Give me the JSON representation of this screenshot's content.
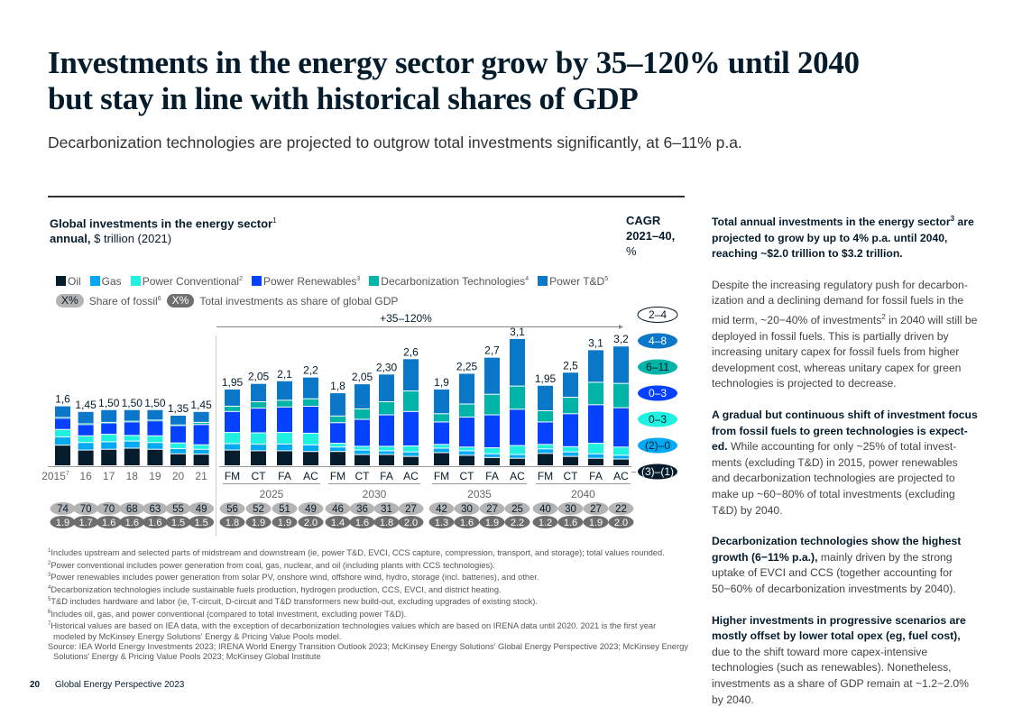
{
  "header": {
    "title": "Investments in the energy sector grow by 35–120% until 2040 but stay in line with historical shares of GDP",
    "subtitle": "Decarbonization technologies are projected to outgrow total investments significantly, at 6–11% p.a."
  },
  "chart_header": {
    "title_bold": "Global investments in the energy sector",
    "title_sup": "1",
    "unit_bold": "annual,",
    "unit": " $ trillion (2021)",
    "cagr_line1": "CAGR",
    "cagr_line2": "2021–40,",
    "cagr_line3": "%"
  },
  "legend": {
    "series": [
      {
        "label": "Oil",
        "sup": "",
        "color": "#051c2c"
      },
      {
        "label": "Gas",
        "sup": "",
        "color": "#00a9f4"
      },
      {
        "label": "Power Conventional",
        "sup": "2",
        "color": "#1ff0e0"
      },
      {
        "label": "Power Renewables",
        "sup": "3",
        "color": "#0541ff"
      },
      {
        "label": "Decarbonization Technologies",
        "sup": "4",
        "color": "#00b4a8"
      },
      {
        "label": "Power T&D",
        "sup": "5",
        "color": "#0a77c8"
      }
    ],
    "pill_placeholder": "X%",
    "fossil_label": "Share of fossil",
    "fossil_sup": "6",
    "gdp_label": "Total investments as share of global GDP"
  },
  "chart_data": {
    "type": "bar",
    "stacked": true,
    "title": "Global investments in the energy sector, annual, $ trillion (2021)",
    "series_order": [
      "Oil",
      "Gas",
      "Power Conventional",
      "Power Renewables",
      "Decarbonization Technologies",
      "Power T&D"
    ],
    "growth_annotation": "+35–120%",
    "groups": [
      {
        "label": "",
        "bars": [
          {
            "x": "2015",
            "sup": "7",
            "total": "1,6",
            "values": [
              0.55,
              0.22,
              0.2,
              0.3,
              0.02,
              0.31
            ],
            "fossil": "74",
            "gdp": "1.9"
          },
          {
            "x": "16",
            "sup": "",
            "total": "1,45",
            "values": [
              0.42,
              0.2,
              0.18,
              0.3,
              0.02,
              0.33
            ],
            "fossil": "70",
            "gdp": "1.7"
          },
          {
            "x": "17",
            "sup": "",
            "total": "1,50",
            "values": [
              0.44,
              0.2,
              0.2,
              0.3,
              0.02,
              0.34
            ],
            "fossil": "70",
            "gdp": "1.6"
          },
          {
            "x": "18",
            "sup": "",
            "total": "1,50",
            "values": [
              0.47,
              0.19,
              0.15,
              0.36,
              0.02,
              0.31
            ],
            "fossil": "68",
            "gdp": "1.6"
          },
          {
            "x": "19",
            "sup": "",
            "total": "1,50",
            "values": [
              0.44,
              0.18,
              0.18,
              0.4,
              0.02,
              0.28
            ],
            "fossil": "63",
            "gdp": "1.6"
          },
          {
            "x": "20",
            "sup": "",
            "total": "1,35",
            "values": [
              0.32,
              0.14,
              0.15,
              0.46,
              0.02,
              0.26
            ],
            "fossil": "55",
            "gdp": "1.5"
          },
          {
            "x": "21",
            "sup": "",
            "total": "1,45",
            "values": [
              0.31,
              0.13,
              0.12,
              0.54,
              0.06,
              0.29
            ],
            "fossil": "49",
            "gdp": "1.5"
          }
        ]
      },
      {
        "label": "2025",
        "bars": [
          {
            "x": "FM",
            "total": "1,95",
            "values": [
              0.42,
              0.17,
              0.3,
              0.56,
              0.14,
              0.46
            ],
            "fossil": "56",
            "gdp": "1.8"
          },
          {
            "x": "CT",
            "total": "2,05",
            "values": [
              0.4,
              0.18,
              0.3,
              0.66,
              0.17,
              0.49
            ],
            "fossil": "52",
            "gdp": "1.9"
          },
          {
            "x": "FA",
            "total": "2,1",
            "values": [
              0.4,
              0.18,
              0.31,
              0.68,
              0.18,
              0.52
            ],
            "fossil": "51",
            "gdp": "1.9"
          },
          {
            "x": "AC",
            "total": "2,2",
            "values": [
              0.38,
              0.18,
              0.31,
              0.72,
              0.2,
              0.58
            ],
            "fossil": "49",
            "gdp": "2.0"
          }
        ]
      },
      {
        "label": "2030",
        "bars": [
          {
            "x": "FM",
            "total": "1,8",
            "values": [
              0.38,
              0.12,
              0.1,
              0.55,
              0.18,
              0.62
            ],
            "fossil": "46",
            "gdp": "1.4"
          },
          {
            "x": "CT",
            "total": "2,05",
            "values": [
              0.3,
              0.12,
              0.1,
              0.72,
              0.28,
              0.67
            ],
            "fossil": "36",
            "gdp": "1.6"
          },
          {
            "x": "FA",
            "total": "2,30",
            "values": [
              0.3,
              0.1,
              0.12,
              0.84,
              0.35,
              0.74
            ],
            "fossil": "31",
            "gdp": "1.8"
          },
          {
            "x": "AC",
            "total": "2,6",
            "values": [
              0.25,
              0.12,
              0.16,
              0.92,
              0.55,
              0.86
            ],
            "fossil": "27",
            "gdp": "2.0"
          }
        ]
      },
      {
        "label": "2035",
        "bars": [
          {
            "x": "FM",
            "total": "1,9",
            "values": [
              0.35,
              0.12,
              0.1,
              0.6,
              0.22,
              0.66
            ],
            "fossil": "42",
            "gdp": "1.3"
          },
          {
            "x": "CT",
            "total": "2,25",
            "values": [
              0.28,
              0.12,
              0.1,
              0.8,
              0.35,
              0.82
            ],
            "fossil": "30",
            "gdp": "1.6"
          },
          {
            "x": "FA",
            "total": "2,7",
            "values": [
              0.22,
              0.1,
              0.16,
              0.88,
              0.55,
              0.99
            ],
            "fossil": "27",
            "gdp": "1.9"
          },
          {
            "x": "AC",
            "total": "3,1",
            "values": [
              0.2,
              0.1,
              0.24,
              0.97,
              0.62,
              1.27
            ],
            "fossil": "25",
            "gdp": "2.2"
          }
        ]
      },
      {
        "label": "2040",
        "bars": [
          {
            "x": "FM",
            "total": "1,95",
            "values": [
              0.33,
              0.12,
              0.12,
              0.6,
              0.3,
              0.68
            ],
            "fossil": "40",
            "gdp": "1.2"
          },
          {
            "x": "CT",
            "total": "2,5",
            "values": [
              0.25,
              0.12,
              0.14,
              0.88,
              0.44,
              0.67
            ],
            "fossil": "30",
            "gdp": "1.6"
          },
          {
            "x": "FA",
            "total": "3,1",
            "values": [
              0.2,
              0.12,
              0.28,
              1.03,
              0.6,
              0.87
            ],
            "fossil": "27",
            "gdp": "1.9"
          },
          {
            "x": "AC",
            "total": "3,2",
            "values": [
              0.18,
              0.1,
              0.22,
              1.05,
              0.65,
              1.0
            ],
            "fossil": "22",
            "gdp": "2.0"
          }
        ]
      }
    ],
    "cagr": [
      {
        "label": "2–4",
        "series": "Total",
        "fill": "#ffffff",
        "text": "#051c2c",
        "outline": "#051c2c"
      },
      {
        "label": "4–8",
        "series": "Power T&D",
        "fill": "#0a77c8",
        "text": "#ffffff"
      },
      {
        "label": "6–11",
        "series": "Decarbonization Technologies",
        "fill": "#00b4a8",
        "text": "#051c2c"
      },
      {
        "label": "0–3",
        "series": "Power Renewables",
        "fill": "#0541ff",
        "text": "#ffffff"
      },
      {
        "label": "0–3",
        "series": "Power Conventional",
        "fill": "#1ff0e0",
        "text": "#051c2c"
      },
      {
        "label": "(2)–0",
        "series": "Gas",
        "fill": "#00a9f4",
        "text": "#051c2c"
      },
      {
        "label": "(3)–(1)",
        "series": "Oil",
        "fill": "#051c2c",
        "text": "#ffffff"
      }
    ],
    "ylim": [
      0,
      3.3
    ],
    "grid": false
  },
  "footnotes": [
    {
      "sup": "1",
      "text": "Includes upstream and selected parts of midstream and downstream (ie, power T&D, EVCI, CCS capture, compression, transport, and storage); total values rounded."
    },
    {
      "sup": "2",
      "text": "Power conventional includes power generation from coal, gas, nuclear, and oil (including plants with CCS technologies)."
    },
    {
      "sup": "3",
      "text": "Power renewables includes power generation from solar PV, onshore wind, offshore wind, hydro, storage (incl. batteries), and other."
    },
    {
      "sup": "4",
      "text": "Decarbonization technologies include sustainable fuels production, hydrogen production, CCS, EVCI, and district heating."
    },
    {
      "sup": "5",
      "text": "T&D includes hardware and labor (ie, T-circuit, D-circuit and T&D transformers new build-out, excluding upgrades of existing stock)."
    },
    {
      "sup": "6",
      "text": "Includes oil, gas, and power conventional (compared to total investment, excluding power T&D)."
    },
    {
      "sup": "7",
      "text": "Historical values are based on IEA data, with the exception of decarbonization technologies values which are based on IRENA data until 2020. 2021 is the first year modeled by McKinsey Energy Solutions' Energy & Pricing Value Pools model."
    },
    {
      "sup": "",
      "text": "Source: IEA World Energy Investments 2023; IRENA World Energy Transition Outlook 2023; McKinsey Energy Solutions' Global Energy Perspective 2023; McKinsey Energy Solutions' Energy & Pricing Value Pools 2023; McKinsey Global Institute"
    }
  ],
  "sidebar": {
    "p1_bold_a": "Total annual investments in the energy sector",
    "p1_sup": "3",
    "p1_bold_b": " are projected to grow by up to 4% p.a. until 2040, reaching ~$2.0 trillion to $3.2 trillion.",
    "p2_a": "Despite the increasing regulatory push for decarbon­ization and a declining demand for fossil fuels in the mid term, ~20−40% of investments",
    "p2_sup": "2",
    "p2_b": " in 2040 will still be deployed in fossil fuels. This is partially driven by increasing unitary capex for fossil fuels from higher development cost, whereas unitary capex for green technologies is projected to decrease.",
    "p3_bold": "A gradual but continuous shift of investment focus from fossil fuels to green technologies is expect­ed.",
    "p3_text": " While accounting for only ~25% of total invest­ments (excluding T&D) in 2015, power renewables and decarbonization technologies are projected to make up ~60−80% of total investments (excluding T&D) by 2040.",
    "p4_bold": "Decarbonization technologies show the highest growth (6−11% p.a.),",
    "p4_text": " mainly driven by the strong uptake of EVCI and CCS (together accounting for 50−60% of decarbonization investments by 2040).",
    "p5_bold": "Higher investments in progressive scenarios are mostly offset by lower total opex (eg, fuel cost),",
    "p5_text": " due to the shift toward more capex-intensive technologies (such as renewables). Nonetheless, investments as a share of GDP remain at ~1.2−2.0% by 2040."
  },
  "footer": {
    "page_number": "20",
    "publication": "Global Energy Perspective 2023"
  }
}
